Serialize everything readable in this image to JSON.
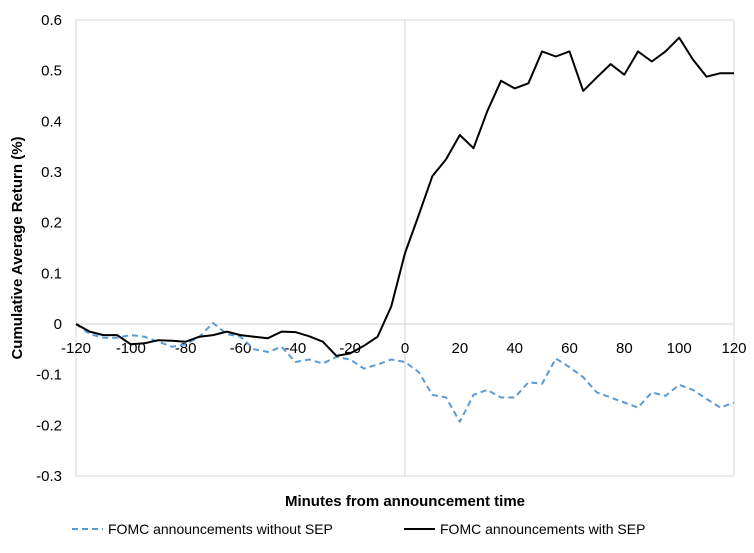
{
  "chart_data": {
    "type": "line",
    "title": "",
    "xlabel": "Minutes from announcement time",
    "ylabel": "Cumulative Average Return (%)",
    "xlim": [
      -120,
      120
    ],
    "ylim": [
      -0.3,
      0.6
    ],
    "x_ticks": [
      "-120",
      "-100",
      "-80",
      "-60",
      "-40",
      "-20",
      "0",
      "20",
      "40",
      "60",
      "80",
      "100",
      "120"
    ],
    "y_ticks": [
      "0.6",
      "0.5",
      "0.4",
      "0.3",
      "0.2",
      "0.1",
      "0",
      "-0.1",
      "-0.2",
      "-0.3"
    ],
    "grid": false,
    "legend_position": "bottom",
    "x": [
      -120,
      -115,
      -110,
      -105,
      -100,
      -95,
      -90,
      -85,
      -80,
      -75,
      -70,
      -65,
      -60,
      -55,
      -50,
      -45,
      -40,
      -35,
      -30,
      -25,
      -20,
      -15,
      -10,
      -5,
      0,
      5,
      10,
      15,
      20,
      25,
      30,
      35,
      40,
      45,
      50,
      55,
      60,
      65,
      70,
      75,
      80,
      85,
      90,
      95,
      100,
      105,
      110,
      115,
      120
    ],
    "series": [
      {
        "name": "FOMC announcements without SEP",
        "color": "#5B9BD5",
        "style": "dashed",
        "values": [
          0.0,
          -0.02,
          -0.027,
          -0.027,
          -0.022,
          -0.025,
          -0.035,
          -0.045,
          -0.04,
          -0.025,
          0.002,
          -0.02,
          -0.025,
          -0.05,
          -0.055,
          -0.045,
          -0.075,
          -0.07,
          -0.078,
          -0.065,
          -0.07,
          -0.088,
          -0.08,
          -0.07,
          -0.075,
          -0.095,
          -0.14,
          -0.145,
          -0.193,
          -0.14,
          -0.13,
          -0.145,
          -0.145,
          -0.115,
          -0.118,
          -0.068,
          -0.085,
          -0.105,
          -0.135,
          -0.145,
          -0.155,
          -0.165,
          -0.135,
          -0.142,
          -0.12,
          -0.13,
          -0.148,
          -0.165,
          -0.155
        ]
      },
      {
        "name": "FOMC announcements with SEP",
        "color": "#000000",
        "style": "solid",
        "values": [
          0.0,
          -0.015,
          -0.022,
          -0.022,
          -0.04,
          -0.038,
          -0.032,
          -0.033,
          -0.035,
          -0.025,
          -0.022,
          -0.015,
          -0.022,
          -0.025,
          -0.028,
          -0.015,
          -0.016,
          -0.024,
          -0.035,
          -0.063,
          -0.058,
          -0.043,
          -0.025,
          0.035,
          0.14,
          0.215,
          0.292,
          0.325,
          0.373,
          0.347,
          0.42,
          0.48,
          0.465,
          0.475,
          0.538,
          0.528,
          0.538,
          0.46,
          0.487,
          0.513,
          0.492,
          0.538,
          0.518,
          0.538,
          0.565,
          0.522,
          0.488,
          0.495,
          0.495
        ]
      }
    ]
  }
}
